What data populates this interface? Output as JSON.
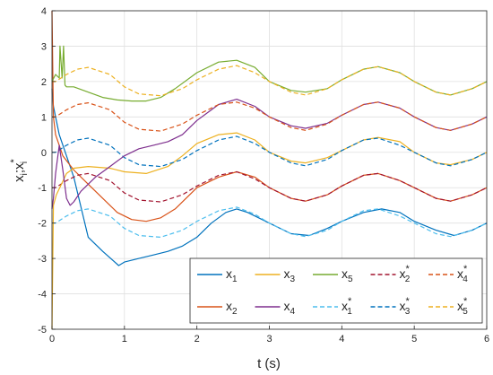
{
  "chart_data": {
    "type": "line",
    "title": "",
    "xlabel": "t (s)",
    "ylabel": {
      "base": "x",
      "sub": "i",
      "sep": ";",
      "star": "*"
    },
    "xlim": [
      0,
      6
    ],
    "ylim": [
      -5,
      4
    ],
    "xticks": [
      "0",
      "1",
      "2",
      "3",
      "4",
      "5",
      "6"
    ],
    "yticks": [
      "-5",
      "-4",
      "-3",
      "-2",
      "-1",
      "0",
      "1",
      "2",
      "3",
      "4"
    ],
    "grid": true,
    "legend_position": "bottom-right",
    "legend": [
      {
        "base": "x",
        "sub": "1",
        "star": ""
      },
      {
        "base": "x",
        "sub": "3",
        "star": ""
      },
      {
        "base": "x",
        "sub": "5",
        "star": ""
      },
      {
        "base": "x",
        "sub": "2",
        "star": "*"
      },
      {
        "base": "x",
        "sub": "4",
        "star": "*"
      },
      {
        "base": "x",
        "sub": "2",
        "star": ""
      },
      {
        "base": "x",
        "sub": "4",
        "star": ""
      },
      {
        "base": "x",
        "sub": "1",
        "star": "*"
      },
      {
        "base": "x",
        "sub": "3",
        "star": "*"
      },
      {
        "base": "x",
        "sub": "5",
        "star": "*"
      }
    ],
    "series": [
      {
        "key": "x1",
        "color": "#0072BD",
        "dash": false,
        "x": [
          0,
          0.02,
          0.1,
          0.3,
          0.5,
          0.7,
          0.92,
          1.0,
          1.2,
          1.4,
          1.6,
          1.8,
          2.0,
          2.2,
          2.4,
          2.55,
          2.7,
          3.0,
          3.3,
          3.55,
          3.8,
          4.0,
          4.3,
          4.55,
          4.8,
          5.0,
          5.3,
          5.55,
          5.8,
          6.0
        ],
        "y": [
          1.8,
          1.3,
          0.5,
          -0.7,
          -2.4,
          -2.8,
          -3.2,
          -3.1,
          -3.0,
          -2.9,
          -2.8,
          -2.65,
          -2.4,
          -2.0,
          -1.7,
          -1.6,
          -1.7,
          -2.0,
          -2.3,
          -2.35,
          -2.15,
          -1.95,
          -1.7,
          -1.6,
          -1.7,
          -1.95,
          -2.2,
          -2.35,
          -2.2,
          -2.0
        ]
      },
      {
        "key": "x1s",
        "color": "#4DBEEE",
        "dash": true,
        "x": [
          0,
          0.05,
          0.2,
          0.35,
          0.5,
          0.8,
          1.0,
          1.2,
          1.5,
          1.8,
          2.0,
          2.3,
          2.55,
          2.8,
          3.0,
          3.3,
          3.5,
          3.8,
          4.0,
          4.3,
          4.5,
          4.8,
          5.0,
          5.3,
          5.5,
          5.8,
          6.0
        ],
        "y": [
          -2.0,
          -2.0,
          -1.8,
          -1.65,
          -1.6,
          -1.8,
          -2.15,
          -2.35,
          -2.4,
          -2.2,
          -1.95,
          -1.65,
          -1.55,
          -1.75,
          -2.0,
          -2.3,
          -2.38,
          -2.2,
          -1.95,
          -1.65,
          -1.6,
          -1.8,
          -2.0,
          -2.3,
          -2.38,
          -2.2,
          -2.0
        ]
      },
      {
        "key": "x2",
        "color": "#D95319",
        "dash": false,
        "x": [
          0,
          0.02,
          0.05,
          0.15,
          0.3,
          0.5,
          0.7,
          0.9,
          1.1,
          1.3,
          1.5,
          1.7,
          2.0,
          2.3,
          2.55,
          2.8,
          3.0,
          3.3,
          3.5,
          3.8,
          4.0,
          4.3,
          4.5,
          4.8,
          5.0,
          5.3,
          5.5,
          5.8,
          6.0
        ],
        "y": [
          4.0,
          1.0,
          0.5,
          -0.1,
          -0.5,
          -0.9,
          -1.3,
          -1.7,
          -1.9,
          -1.95,
          -1.85,
          -1.6,
          -1.0,
          -0.7,
          -0.55,
          -0.7,
          -1.0,
          -1.3,
          -1.38,
          -1.2,
          -0.95,
          -0.65,
          -0.6,
          -0.8,
          -1.0,
          -1.3,
          -1.38,
          -1.2,
          -1.0
        ]
      },
      {
        "key": "x2s",
        "color": "#A2142F",
        "dash": true,
        "x": [
          0,
          0.05,
          0.2,
          0.35,
          0.5,
          0.8,
          1.0,
          1.2,
          1.5,
          1.8,
          2.0,
          2.3,
          2.55,
          2.8,
          3.0,
          3.3,
          3.5,
          3.8,
          4.0,
          4.3,
          4.5,
          4.8,
          5.0,
          5.3,
          5.5,
          5.8,
          6.0
        ],
        "y": [
          -1.0,
          -1.0,
          -0.8,
          -0.65,
          -0.6,
          -0.8,
          -1.15,
          -1.35,
          -1.4,
          -1.2,
          -0.95,
          -0.65,
          -0.55,
          -0.75,
          -1.0,
          -1.3,
          -1.38,
          -1.2,
          -0.95,
          -0.65,
          -0.6,
          -0.8,
          -1.0,
          -1.3,
          -1.38,
          -1.2,
          -1.0
        ]
      },
      {
        "key": "x3",
        "color": "#EDB120",
        "dash": false,
        "x": [
          0,
          0.02,
          0.06,
          0.2,
          0.3,
          0.5,
          0.8,
          1.0,
          1.3,
          1.6,
          1.8,
          2.0,
          2.3,
          2.55,
          2.8,
          3.0,
          3.3,
          3.5,
          3.8,
          4.0,
          4.3,
          4.5,
          4.8,
          5.0,
          5.3,
          5.5,
          5.8,
          6.0
        ],
        "y": [
          -5.0,
          -1.5,
          -1.2,
          -0.6,
          -0.45,
          -0.4,
          -0.45,
          -0.55,
          -0.6,
          -0.4,
          -0.1,
          0.25,
          0.5,
          0.55,
          0.35,
          0.0,
          -0.25,
          -0.3,
          -0.15,
          0.05,
          0.35,
          0.42,
          0.3,
          0.0,
          -0.3,
          -0.35,
          -0.2,
          0.0
        ]
      },
      {
        "key": "x3s",
        "color": "#0072BD",
        "dash": true,
        "x": [
          0,
          0.05,
          0.2,
          0.35,
          0.5,
          0.8,
          1.0,
          1.2,
          1.5,
          1.8,
          2.0,
          2.3,
          2.55,
          2.8,
          3.0,
          3.3,
          3.5,
          3.8,
          4.0,
          4.3,
          4.5,
          4.8,
          5.0,
          5.3,
          5.5,
          5.8,
          6.0
        ],
        "y": [
          0.0,
          0.0,
          0.2,
          0.35,
          0.4,
          0.2,
          -0.15,
          -0.35,
          -0.4,
          -0.2,
          0.05,
          0.35,
          0.45,
          0.25,
          0.0,
          -0.3,
          -0.38,
          -0.2,
          0.05,
          0.35,
          0.4,
          0.2,
          0.0,
          -0.3,
          -0.38,
          -0.2,
          0.0
        ]
      },
      {
        "key": "x4",
        "color": "#7E2F8E",
        "dash": false,
        "x": [
          0,
          0.02,
          0.05,
          0.1,
          0.15,
          0.2,
          0.25,
          0.3,
          0.4,
          0.6,
          0.8,
          1.0,
          1.2,
          1.4,
          1.6,
          1.8,
          2.0,
          2.3,
          2.55,
          2.8,
          3.0,
          3.3,
          3.5,
          3.8,
          4.0,
          4.3,
          4.5,
          4.8,
          5.0,
          5.3,
          5.5,
          5.8,
          6.0
        ],
        "y": [
          -1.6,
          -1.3,
          -0.6,
          0.2,
          -0.5,
          -1.3,
          -1.5,
          -1.4,
          -1.1,
          -0.7,
          -0.4,
          -0.1,
          0.1,
          0.2,
          0.3,
          0.5,
          0.9,
          1.35,
          1.5,
          1.3,
          1.0,
          0.75,
          0.68,
          0.82,
          1.05,
          1.35,
          1.42,
          1.25,
          1.0,
          0.7,
          0.62,
          0.8,
          1.0
        ]
      },
      {
        "key": "x4s",
        "color": "#D95319",
        "dash": true,
        "x": [
          0,
          0.05,
          0.2,
          0.35,
          0.5,
          0.8,
          1.0,
          1.2,
          1.5,
          1.8,
          2.0,
          2.3,
          2.55,
          2.8,
          3.0,
          3.3,
          3.5,
          3.8,
          4.0,
          4.3,
          4.5,
          4.8,
          5.0,
          5.3,
          5.5,
          5.8,
          6.0
        ],
        "y": [
          1.0,
          1.0,
          1.2,
          1.35,
          1.4,
          1.2,
          0.85,
          0.65,
          0.6,
          0.8,
          1.05,
          1.35,
          1.42,
          1.25,
          1.0,
          0.7,
          0.62,
          0.8,
          1.05,
          1.35,
          1.42,
          1.25,
          1.0,
          0.7,
          0.62,
          0.8,
          1.0
        ]
      },
      {
        "key": "x5",
        "color": "#77AC30",
        "dash": false,
        "x": [
          0,
          0.05,
          0.1,
          0.11,
          0.14,
          0.16,
          0.18,
          0.2,
          0.3,
          0.5,
          0.7,
          0.9,
          1.1,
          1.3,
          1.5,
          1.7,
          2.0,
          2.3,
          2.55,
          2.8,
          3.0,
          3.3,
          3.5,
          3.8,
          4.0,
          4.3,
          4.5,
          4.8,
          5.0,
          5.3,
          5.5,
          5.8,
          6.0
        ],
        "y": [
          2.0,
          2.2,
          2.1,
          3.0,
          2.1,
          3.0,
          1.9,
          1.85,
          1.85,
          1.7,
          1.55,
          1.48,
          1.45,
          1.45,
          1.55,
          1.8,
          2.25,
          2.55,
          2.6,
          2.4,
          2.0,
          1.75,
          1.7,
          1.8,
          2.05,
          2.35,
          2.42,
          2.25,
          2.0,
          1.7,
          1.62,
          1.8,
          2.0
        ]
      },
      {
        "key": "x5s",
        "color": "#EDB120",
        "dash": true,
        "x": [
          0,
          0.05,
          0.2,
          0.35,
          0.5,
          0.8,
          1.0,
          1.2,
          1.5,
          1.8,
          2.0,
          2.3,
          2.55,
          2.8,
          3.0,
          3.3,
          3.5,
          3.8,
          4.0,
          4.3,
          4.5,
          4.8,
          5.0,
          5.3,
          5.5,
          5.8,
          6.0
        ],
        "y": [
          2.0,
          2.0,
          2.2,
          2.35,
          2.4,
          2.2,
          1.85,
          1.65,
          1.6,
          1.8,
          2.05,
          2.35,
          2.45,
          2.25,
          2.0,
          1.7,
          1.62,
          1.8,
          2.05,
          2.35,
          2.42,
          2.25,
          2.0,
          1.7,
          1.62,
          1.8,
          2.0
        ]
      }
    ]
  }
}
